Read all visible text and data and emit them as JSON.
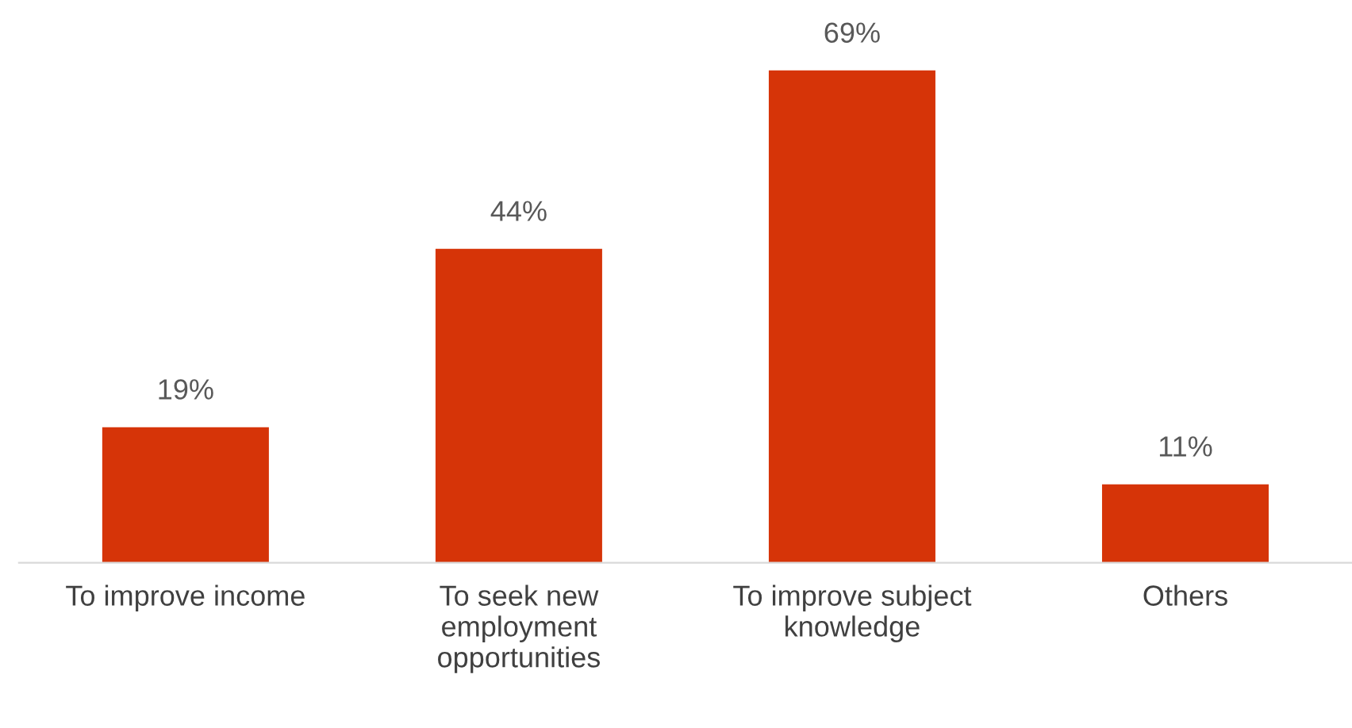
{
  "chart_data": {
    "type": "bar",
    "categories": [
      "To improve income",
      "To seek new\nemployment\nopportunities",
      "To improve subject\nknowledge",
      "Others"
    ],
    "values": [
      19,
      44,
      69,
      11
    ],
    "value_labels": [
      "19%",
      "44%",
      "69%",
      "11%"
    ],
    "color": "#d63408",
    "grid": false,
    "legend": false
  }
}
